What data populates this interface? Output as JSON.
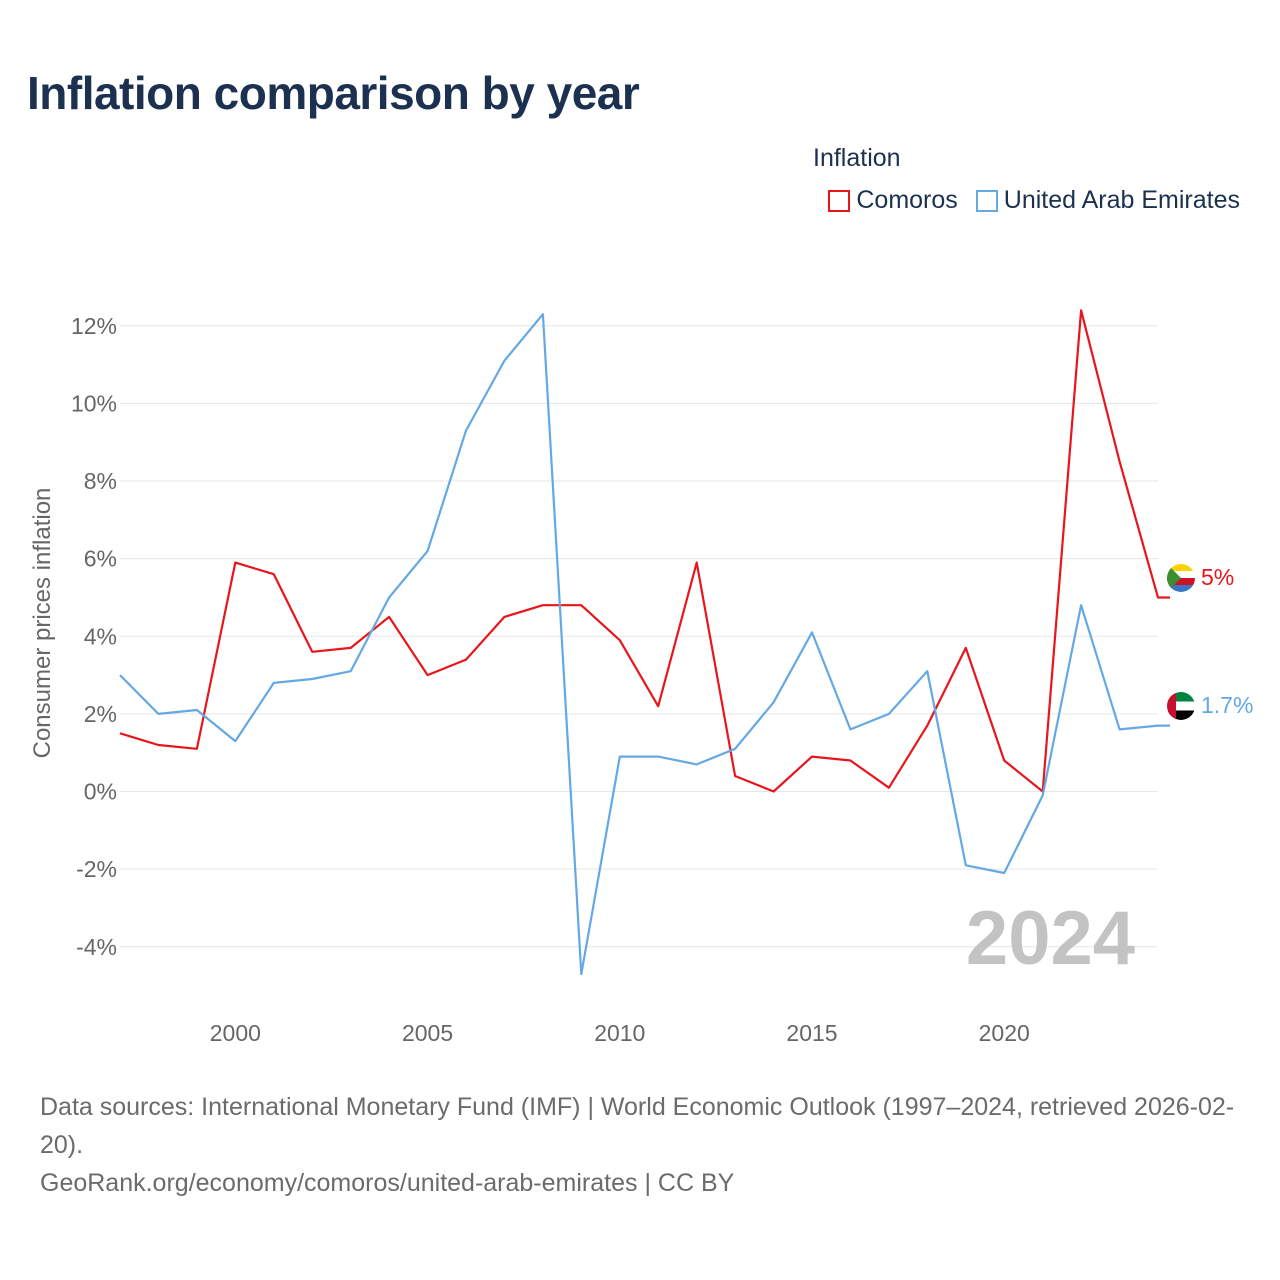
{
  "title": "Inflation comparison by year",
  "legend": {
    "title": "Inflation",
    "items": [
      {
        "label": "Comoros",
        "color": "#e8161b"
      },
      {
        "label": "United Arab Emirates",
        "color": "#64a8e4"
      }
    ]
  },
  "watermark_year": "2024",
  "end_labels": {
    "comoros": "5%",
    "uae": "1.7%"
  },
  "sources": {
    "line1": "Data sources: International Monetary Fund (IMF) | World Economic Outlook (1997–2024, retrieved 2026-02-20).",
    "line2": "GeoRank.org/economy/comoros/united-arab-emirates | CC BY"
  },
  "chart_data": {
    "type": "line",
    "title": "Inflation comparison by year",
    "xlabel": "",
    "ylabel": "Consumer prices inflation",
    "x": [
      1997,
      1998,
      1999,
      2000,
      2001,
      2002,
      2003,
      2004,
      2005,
      2006,
      2007,
      2008,
      2009,
      2010,
      2011,
      2012,
      2013,
      2014,
      2015,
      2016,
      2017,
      2018,
      2019,
      2020,
      2021,
      2022,
      2023,
      2024
    ],
    "xlim": [
      1997,
      2024
    ],
    "ylim": [
      -5.5,
      13
    ],
    "x_ticks": [
      2000,
      2005,
      2010,
      2015,
      2020
    ],
    "x_tick_labels": [
      "2000",
      "2005",
      "2010",
      "2015",
      "2020"
    ],
    "y_ticks": [
      -4,
      -2,
      0,
      2,
      4,
      6,
      8,
      10,
      12
    ],
    "y_tick_labels": [
      "-4%",
      "-2%",
      "0%",
      "2%",
      "4%",
      "6%",
      "8%",
      "10%",
      "12%"
    ],
    "grid": true,
    "legend_position": "top-right",
    "series": [
      {
        "name": "Comoros",
        "color": "#e8161b",
        "values": [
          1.5,
          1.2,
          1.1,
          5.9,
          5.6,
          3.6,
          3.7,
          4.5,
          3.0,
          3.4,
          4.5,
          4.8,
          4.8,
          3.9,
          2.2,
          5.9,
          0.4,
          0.0,
          0.9,
          0.8,
          0.1,
          1.7,
          3.7,
          0.8,
          0.0,
          12.4,
          8.5,
          5.0
        ]
      },
      {
        "name": "United Arab Emirates",
        "color": "#64a8e4",
        "values": [
          3.0,
          2.0,
          2.1,
          1.3,
          2.8,
          2.9,
          3.1,
          5.0,
          6.2,
          9.3,
          11.1,
          12.3,
          -4.7,
          0.9,
          0.9,
          0.7,
          1.1,
          2.3,
          4.1,
          1.6,
          2.0,
          3.1,
          -1.9,
          -2.1,
          -0.1,
          4.8,
          1.6,
          1.7
        ]
      }
    ]
  }
}
